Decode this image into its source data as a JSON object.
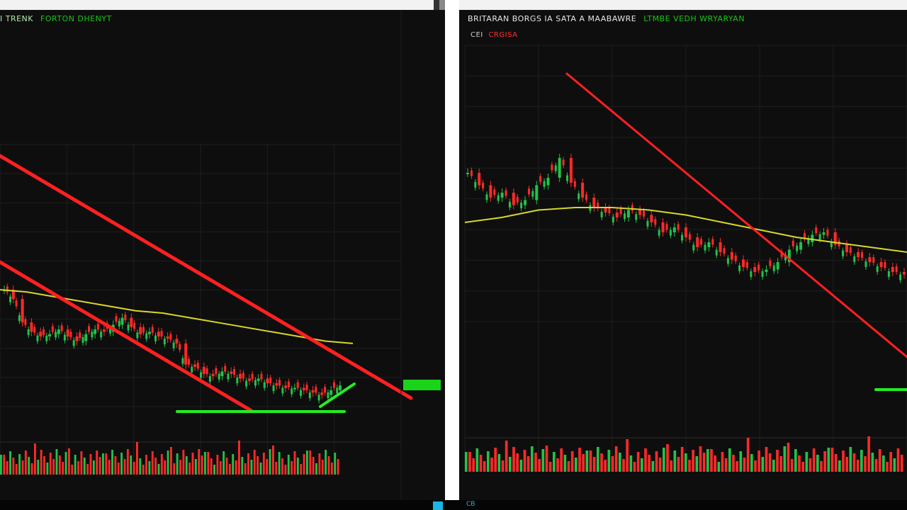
{
  "colors": {
    "bull": "#22c24a",
    "bear": "#ff2a2a",
    "ma": "#d7d72a",
    "trend": "#ff2020",
    "support": "#22ee22",
    "grid": "#1e1e1e",
    "background": "#0e0e0e"
  },
  "left_panel": {
    "header_white": "I TRENK",
    "header_green": "FORTON DHENYT",
    "price_badge": "",
    "volume_label": ""
  },
  "right_panel": {
    "header_white": "BRITARAN BORGS IA SATA A MAABAWRE",
    "header_green": "LTMBE VEDH WRYARYAN",
    "sub_label": "CEI",
    "sub_label_red": "CRGISA",
    "volume_label": "",
    "footer_text": "CB"
  },
  "chart_data": [
    {
      "type": "candlestick",
      "title": "",
      "series": [
        {
          "values": [
            50,
            46,
            36,
            32,
            30,
            31,
            33,
            30,
            28,
            31,
            33,
            32,
            35,
            38,
            34,
            31,
            32,
            30,
            29,
            27,
            18,
            17,
            14,
            13,
            15,
            14,
            12,
            11,
            12,
            10,
            9,
            8,
            8,
            7,
            6,
            5,
            7,
            9
          ]
        },
        {
          "values": [
            50,
            49,
            47,
            45,
            43,
            41,
            40,
            38,
            36,
            34,
            32,
            30,
            28,
            27
          ]
        }
      ],
      "annotations": [
        "descending channel (two red trend lines)",
        "horizontal support line",
        "green rising segment at right end"
      ]
    },
    {
      "type": "candlestick",
      "title": "",
      "series": [
        {
          "values": [
            60,
            55,
            50,
            52,
            47,
            49,
            55,
            58,
            66,
            56,
            50,
            46,
            44,
            42,
            45,
            43,
            40,
            36,
            38,
            34,
            30,
            32,
            28,
            25,
            22,
            20,
            21,
            24,
            29,
            32,
            35,
            36,
            31,
            28,
            26,
            24,
            22,
            20,
            19
          ]
        },
        {
          "values": [
            40,
            42,
            45,
            46,
            46,
            45,
            43,
            40,
            37,
            34,
            32,
            30,
            28
          ]
        }
      ],
      "annotations": [
        "descending red trend line",
        "green support segment at right edge"
      ]
    }
  ]
}
